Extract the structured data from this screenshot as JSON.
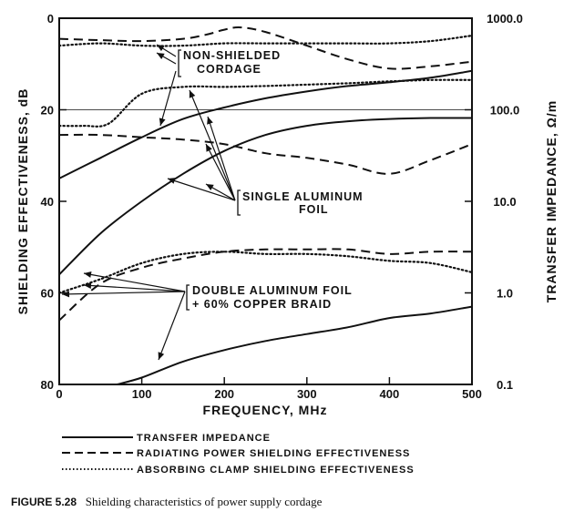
{
  "chart_data": {
    "type": "line",
    "xlabel": "FREQUENCY, MHz",
    "ylabel_left": "SHIELDING EFFECTIVENESS, dB",
    "ylabel_right": "TRANSFER IMPEDANCE, Ω/m",
    "xlim": [
      0,
      500
    ],
    "ylim_left": [
      0,
      80
    ],
    "ylim_left_inverted": true,
    "ylim_right": [
      0.1,
      1000
    ],
    "ylim_right_scale": "log",
    "grid": false,
    "x_ticks": [
      "0",
      "100",
      "200",
      "300",
      "400",
      "500"
    ],
    "y_ticks_left": [
      "0",
      "20",
      "40",
      "60",
      "80"
    ],
    "y_ticks_right": [
      "1000.0",
      "100.0",
      "10.0",
      "1.0",
      "0.1"
    ],
    "legend": [
      {
        "style": "solid",
        "label": "TRANSFER IMPEDANCE"
      },
      {
        "style": "dashed",
        "label": "RADIATING POWER SHIELDING EFFECTIVENESS"
      },
      {
        "style": "dotted",
        "label": "ABSORBING CLAMP SHIELDING EFFECTIVENESS"
      }
    ],
    "annotations": [
      {
        "lines": [
          "NON-SHIELDED",
          "CORDAGE"
        ]
      },
      {
        "lines": [
          "SINGLE ALUMINUM",
          "FOIL"
        ]
      },
      {
        "lines": [
          "DOUBLE ALUMINUM FOIL",
          "+ 60% COPPER BRAID"
        ]
      }
    ],
    "series": [
      {
        "group": "non-shielded",
        "style": "solid",
        "x": [
          0,
          50,
          100,
          150,
          200,
          250,
          300,
          350,
          400,
          450,
          500
        ],
        "y": [
          35,
          30.5,
          26,
          22,
          19.5,
          17.5,
          16,
          14.8,
          14,
          13,
          11.5
        ]
      },
      {
        "group": "non-shielded",
        "style": "dashed",
        "x": [
          0,
          50,
          100,
          150,
          180,
          200,
          220,
          250,
          300,
          350,
          400,
          450,
          500
        ],
        "y": [
          4.5,
          4.8,
          5,
          4.5,
          3.5,
          2.5,
          2,
          3,
          6,
          9,
          11,
          10.5,
          9.5
        ]
      },
      {
        "group": "non-shielded",
        "style": "dotted",
        "x": [
          0,
          50,
          100,
          150,
          200,
          250,
          300,
          350,
          400,
          450,
          500
        ],
        "y": [
          6,
          5.5,
          6,
          6,
          5.5,
          5.5,
          5.5,
          5.5,
          5.5,
          5,
          3.8
        ]
      },
      {
        "group": "single-foil",
        "style": "solid",
        "x": [
          0,
          50,
          100,
          150,
          200,
          250,
          300,
          350,
          400,
          450,
          500
        ],
        "y": [
          56,
          47,
          40,
          34,
          29,
          25.5,
          23.5,
          22.5,
          22,
          21.8,
          21.8
        ]
      },
      {
        "group": "single-foil",
        "style": "dashed",
        "x": [
          0,
          50,
          100,
          150,
          200,
          250,
          300,
          350,
          400,
          450,
          500
        ],
        "y": [
          25.5,
          25.5,
          26,
          26.5,
          27.5,
          29.5,
          30.5,
          32,
          34,
          31,
          27.5
        ]
      },
      {
        "group": "single-foil",
        "style": "dotted",
        "x": [
          0,
          30,
          60,
          100,
          150,
          200,
          250,
          300,
          350,
          400,
          450,
          500
        ],
        "y": [
          23.5,
          23.5,
          23,
          16.5,
          15,
          15,
          14.8,
          14.5,
          14.2,
          13.8,
          13.5,
          13.5
        ]
      },
      {
        "group": "double-foil-braid",
        "style": "solid",
        "x": [
          70,
          100,
          150,
          200,
          250,
          300,
          350,
          400,
          450,
          500
        ],
        "y": [
          80,
          78.5,
          75,
          72.5,
          70.5,
          69,
          67.5,
          65.5,
          64.5,
          63
        ]
      },
      {
        "group": "double-foil-braid",
        "style": "dashed",
        "x": [
          0,
          50,
          100,
          150,
          200,
          250,
          300,
          350,
          400,
          450,
          500
        ],
        "y": [
          66,
          58,
          54.5,
          52.5,
          51,
          50.5,
          50.5,
          50.5,
          51.5,
          51,
          51
        ]
      },
      {
        "group": "double-foil-braid",
        "style": "dotted",
        "x": [
          0,
          50,
          100,
          150,
          200,
          250,
          300,
          350,
          400,
          450,
          500
        ],
        "y": [
          60,
          57,
          53.5,
          51.5,
          51,
          51.5,
          51.5,
          52,
          53,
          53.5,
          55.5
        ]
      }
    ]
  },
  "caption": {
    "label": "FIGURE 5.28",
    "text": "Shielding characteristics of power supply cordage"
  }
}
